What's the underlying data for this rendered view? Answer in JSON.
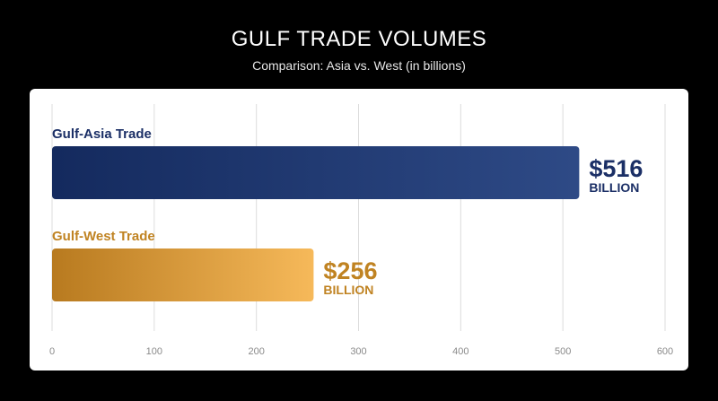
{
  "title": "GULF TRADE VOLUMES",
  "subtitle": "Comparison: Asia vs. West (in billions)",
  "colors": {
    "asia_dark": "#142a5e",
    "asia_light": "#2e4a86",
    "asia_text": "#1b2f66",
    "west_dark": "#b87a1f",
    "west_light": "#f6b95a",
    "west_text": "#c08322",
    "grid": "#dcdcdc",
    "tick": "#8a8a8a"
  },
  "chart_data": {
    "type": "bar",
    "orientation": "horizontal",
    "title": "GULF TRADE VOLUMES",
    "subtitle": "Comparison: Asia vs. West (in billions)",
    "categories": [
      "Gulf-Asia Trade",
      "Gulf-West Trade"
    ],
    "values": [
      516,
      256
    ],
    "value_labels": [
      {
        "amount": "$516",
        "unit": "BILLION"
      },
      {
        "amount": "$256",
        "unit": "BILLION"
      }
    ],
    "xlim": [
      0,
      600
    ],
    "xticks": [
      0,
      100,
      200,
      300,
      400,
      500,
      600
    ],
    "grid": true
  }
}
